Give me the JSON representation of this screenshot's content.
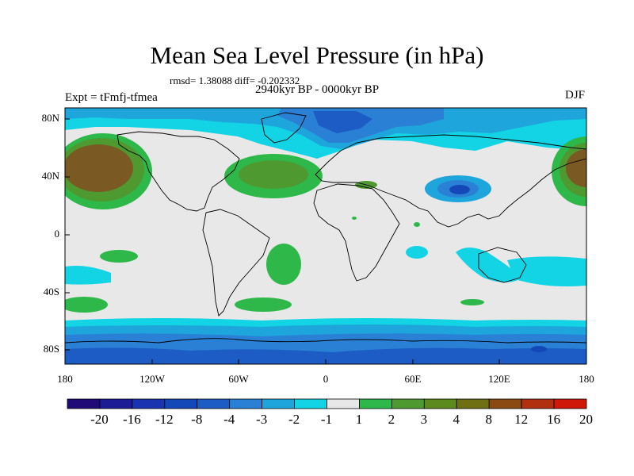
{
  "title": "Mean Sea Level Pressure (in hPa)",
  "stats_text": "rmsd= 1.38088 diff= -0.202332",
  "period_text": "2940kyr BP - 0000kyr BP",
  "experiment_text": "Expt = tFmfj-tfmea",
  "season_text": "DJF",
  "lat_labels": [
    "80N",
    "40N",
    "0",
    "40S",
    "80S"
  ],
  "lon_labels": [
    "180",
    "120W",
    "60W",
    "0",
    "60E",
    "120E",
    "180"
  ],
  "colorbar": {
    "labels": [
      "-20",
      "-16",
      "-12",
      "-8",
      "-4",
      "-3",
      "-2",
      "-1",
      "1",
      "2",
      "3",
      "4",
      "8",
      "12",
      "16",
      "20"
    ],
    "colors": [
      "#1f0a78",
      "#1c1c96",
      "#1a33b0",
      "#1448b8",
      "#1c5cc4",
      "#2a80d4",
      "#1ea6dc",
      "#12d4e4",
      "#e8e8e8",
      "#2fb84a",
      "#4e9a30",
      "#5c8a1e",
      "#6f6f14",
      "#8a4a12",
      "#b03010",
      "#d01808"
    ]
  },
  "field_colors": {
    "neutral": "#e8e8e8",
    "weak_high": "#2fb84a",
    "mid_high": "#4e9a30",
    "strong_high": "#6f6f14",
    "max_high": "#7a5a22",
    "weak_low": "#12d4e4",
    "low_m2": "#1ea6dc",
    "low_m3": "#2a80d4",
    "low_m4": "#1c5cc4",
    "low_m8": "#1448b8"
  }
}
